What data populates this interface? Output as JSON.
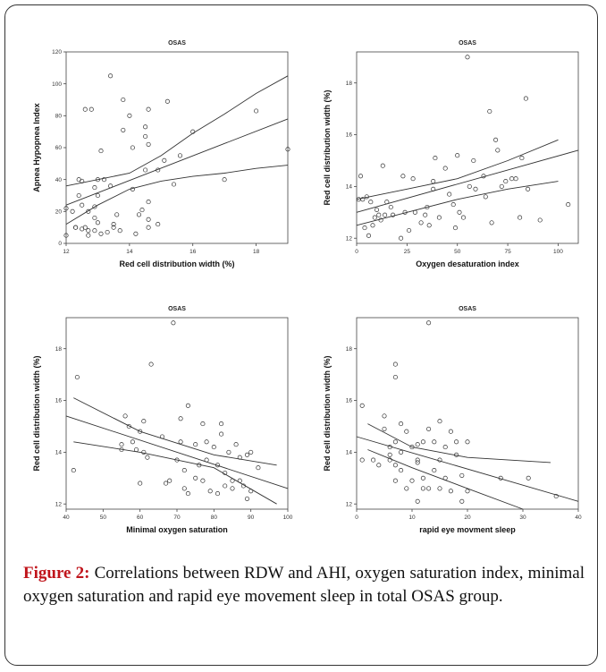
{
  "figure_label": "Figure 2:",
  "figure_caption": "Correlations between RDW and AHI, oxygen saturation index, minimal oxygen saturation and rapid eye movement sleep in total OSAS group.",
  "chart_data": [
    {
      "type": "scatter",
      "title": "OSAS",
      "xlabel": "Red cell distribution width (%)",
      "ylabel": "Apnea Hypopnea Index",
      "xlim": [
        12,
        19
      ],
      "ylim": [
        0,
        120
      ],
      "xticks": [
        12,
        14,
        16,
        18
      ],
      "yticks": [
        0,
        20,
        40,
        60,
        80,
        100,
        120
      ],
      "points": [
        [
          12.0,
          22
        ],
        [
          12.0,
          5
        ],
        [
          12.2,
          20
        ],
        [
          12.3,
          10
        ],
        [
          12.3,
          10
        ],
        [
          12.4,
          40
        ],
        [
          12.4,
          30
        ],
        [
          12.5,
          39
        ],
        [
          12.5,
          9
        ],
        [
          12.5,
          24
        ],
        [
          12.6,
          84
        ],
        [
          12.6,
          10
        ],
        [
          12.7,
          20
        ],
        [
          12.7,
          8
        ],
        [
          12.7,
          5
        ],
        [
          12.8,
          84
        ],
        [
          12.9,
          35
        ],
        [
          12.9,
          23
        ],
        [
          12.9,
          16
        ],
        [
          12.9,
          8
        ],
        [
          13.0,
          30
        ],
        [
          13.0,
          13
        ],
        [
          13.0,
          40
        ],
        [
          13.1,
          58
        ],
        [
          13.1,
          6
        ],
        [
          13.2,
          40
        ],
        [
          13.3,
          7
        ],
        [
          13.4,
          105
        ],
        [
          13.4,
          36
        ],
        [
          13.5,
          12
        ],
        [
          13.5,
          10
        ],
        [
          13.6,
          18
        ],
        [
          13.7,
          8
        ],
        [
          13.8,
          90
        ],
        [
          13.8,
          71
        ],
        [
          14.0,
          80
        ],
        [
          14.1,
          60
        ],
        [
          14.1,
          34
        ],
        [
          14.2,
          6
        ],
        [
          14.3,
          18
        ],
        [
          14.4,
          21
        ],
        [
          14.5,
          73
        ],
        [
          14.5,
          67
        ],
        [
          14.5,
          46
        ],
        [
          14.6,
          84
        ],
        [
          14.6,
          62
        ],
        [
          14.6,
          26
        ],
        [
          14.6,
          15
        ],
        [
          14.6,
          10
        ],
        [
          14.9,
          46
        ],
        [
          14.9,
          12
        ],
        [
          15.1,
          52
        ],
        [
          15.2,
          89
        ],
        [
          15.4,
          37
        ],
        [
          15.6,
          55
        ],
        [
          16.0,
          70
        ],
        [
          17.0,
          40
        ],
        [
          18.0,
          83
        ],
        [
          19.0,
          59
        ]
      ],
      "fit_line": [
        [
          12,
          24
        ],
        [
          19,
          78
        ]
      ],
      "ci_upper": [
        [
          12,
          36
        ],
        [
          13,
          40
        ],
        [
          14,
          44
        ],
        [
          15,
          55
        ],
        [
          16,
          69
        ],
        [
          17,
          81
        ],
        [
          18,
          94
        ],
        [
          19,
          105
        ]
      ],
      "ci_lower": [
        [
          12,
          12
        ],
        [
          13,
          24
        ],
        [
          14,
          34
        ],
        [
          15,
          39
        ],
        [
          16,
          42
        ],
        [
          17,
          44
        ],
        [
          18,
          47
        ],
        [
          19,
          49
        ]
      ]
    },
    {
      "type": "scatter",
      "title": "OSAS",
      "xlabel": "Oxygen desaturation index",
      "ylabel": "Red cell distribution width (%)",
      "xlim": [
        0,
        110
      ],
      "ylim": [
        11.8,
        19.2
      ],
      "xticks": [
        0,
        25,
        50,
        75,
        100
      ],
      "yticks": [
        12,
        14,
        16,
        18
      ],
      "points": [
        [
          1,
          13.5
        ],
        [
          2,
          14.4
        ],
        [
          3,
          13.5
        ],
        [
          4,
          12.4
        ],
        [
          5,
          13.6
        ],
        [
          6,
          12.1
        ],
        [
          7,
          13.4
        ],
        [
          8,
          12.5
        ],
        [
          9,
          12.8
        ],
        [
          10,
          13.1
        ],
        [
          11,
          12.9
        ],
        [
          12,
          12.7
        ],
        [
          13,
          14.8
        ],
        [
          14,
          12.9
        ],
        [
          15,
          13.4
        ],
        [
          17,
          13.2
        ],
        [
          18,
          12.9
        ],
        [
          22,
          12.0
        ],
        [
          23,
          14.4
        ],
        [
          24,
          13.0
        ],
        [
          26,
          12.3
        ],
        [
          28,
          14.3
        ],
        [
          29,
          13.0
        ],
        [
          32,
          12.6
        ],
        [
          34,
          12.9
        ],
        [
          35,
          13.2
        ],
        [
          36,
          12.5
        ],
        [
          38,
          14.2
        ],
        [
          38,
          13.9
        ],
        [
          39,
          15.1
        ],
        [
          41,
          12.8
        ],
        [
          44,
          14.7
        ],
        [
          46,
          13.7
        ],
        [
          48,
          13.3
        ],
        [
          49,
          12.4
        ],
        [
          50,
          15.2
        ],
        [
          51,
          13.0
        ],
        [
          53,
          12.8
        ],
        [
          55,
          19.0
        ],
        [
          56,
          14.0
        ],
        [
          58,
          15.0
        ],
        [
          59,
          13.9
        ],
        [
          63,
          14.4
        ],
        [
          64,
          13.6
        ],
        [
          66,
          16.9
        ],
        [
          67,
          12.6
        ],
        [
          69,
          15.8
        ],
        [
          70,
          15.4
        ],
        [
          72,
          14.0
        ],
        [
          74,
          14.2
        ],
        [
          77,
          14.3
        ],
        [
          79,
          14.3
        ],
        [
          81,
          12.8
        ],
        [
          82,
          15.1
        ],
        [
          84,
          17.4
        ],
        [
          85,
          13.9
        ],
        [
          91,
          12.7
        ],
        [
          105,
          13.3
        ]
      ],
      "fit_line": [
        [
          0,
          13.0
        ],
        [
          110,
          15.4
        ]
      ],
      "ci_upper": [
        [
          0,
          13.5
        ],
        [
          25,
          13.9
        ],
        [
          50,
          14.3
        ],
        [
          75,
          15.0
        ],
        [
          100,
          15.8
        ]
      ],
      "ci_lower": [
        [
          0,
          12.5
        ],
        [
          25,
          13.0
        ],
        [
          50,
          13.5
        ],
        [
          75,
          13.9
        ],
        [
          100,
          14.2
        ]
      ]
    },
    {
      "type": "scatter",
      "title": "OSAS",
      "xlabel": "Minimal oxygen saturation",
      "ylabel": "Red cell distribution width (%)",
      "xlim": [
        40,
        100
      ],
      "ylim": [
        11.8,
        19.2
      ],
      "xticks": [
        40,
        50,
        60,
        70,
        80,
        90,
        100
      ],
      "yticks": [
        12,
        14,
        16,
        18
      ],
      "points": [
        [
          42,
          13.3
        ],
        [
          43,
          16.9
        ],
        [
          55,
          14.3
        ],
        [
          55,
          14.1
        ],
        [
          56,
          15.4
        ],
        [
          57,
          15.0
        ],
        [
          58,
          14.4
        ],
        [
          59,
          14.1
        ],
        [
          60,
          12.8
        ],
        [
          60,
          14.8
        ],
        [
          61,
          14.0
        ],
        [
          61,
          15.2
        ],
        [
          62,
          13.8
        ],
        [
          63,
          17.4
        ],
        [
          66,
          14.6
        ],
        [
          67,
          12.8
        ],
        [
          68,
          12.9
        ],
        [
          69,
          19.0
        ],
        [
          70,
          13.7
        ],
        [
          71,
          14.4
        ],
        [
          71,
          15.3
        ],
        [
          72,
          12.6
        ],
        [
          72,
          13.3
        ],
        [
          73,
          15.8
        ],
        [
          73,
          12.4
        ],
        [
          75,
          14.3
        ],
        [
          75,
          13.0
        ],
        [
          76,
          13.5
        ],
        [
          77,
          15.1
        ],
        [
          77,
          12.9
        ],
        [
          78,
          14.4
        ],
        [
          78,
          13.7
        ],
        [
          79,
          12.5
        ],
        [
          80,
          14.2
        ],
        [
          81,
          12.4
        ],
        [
          81,
          13.5
        ],
        [
          82,
          15.1
        ],
        [
          82,
          14.7
        ],
        [
          83,
          13.2
        ],
        [
          83,
          12.7
        ],
        [
          84,
          14.0
        ],
        [
          85,
          12.9
        ],
        [
          85,
          12.6
        ],
        [
          86,
          14.3
        ],
        [
          87,
          12.9
        ],
        [
          87,
          13.8
        ],
        [
          88,
          12.7
        ],
        [
          89,
          13.9
        ],
        [
          89,
          12.2
        ],
        [
          90,
          14.0
        ],
        [
          90,
          12.5
        ],
        [
          92,
          13.4
        ]
      ],
      "fit_line": [
        [
          40,
          15.4
        ],
        [
          100,
          12.6
        ]
      ],
      "ci_upper": [
        [
          42,
          16.1
        ],
        [
          60,
          14.8
        ],
        [
          80,
          13.9
        ],
        [
          97,
          13.5
        ]
      ],
      "ci_lower": [
        [
          42,
          14.4
        ],
        [
          60,
          14.0
        ],
        [
          80,
          13.4
        ],
        [
          97,
          12.0
        ]
      ]
    },
    {
      "type": "scatter",
      "title": "OSAS",
      "xlabel": "rapid eye movment sleep",
      "ylabel": "Red cell distribution width (%)",
      "xlim": [
        0,
        40
      ],
      "ylim": [
        11.8,
        19.2
      ],
      "xticks": [
        0,
        10,
        20,
        30,
        40
      ],
      "yticks": [
        12,
        14,
        16,
        18
      ],
      "points": [
        [
          1,
          13.7
        ],
        [
          1,
          15.8
        ],
        [
          3,
          13.7
        ],
        [
          4,
          13.5
        ],
        [
          5,
          15.4
        ],
        [
          5,
          14.9
        ],
        [
          6,
          13.9
        ],
        [
          6,
          14.2
        ],
        [
          6,
          13.7
        ],
        [
          7,
          14.4
        ],
        [
          7,
          17.4
        ],
        [
          7,
          16.9
        ],
        [
          7,
          13.5
        ],
        [
          7,
          12.9
        ],
        [
          8,
          15.1
        ],
        [
          8,
          14.0
        ],
        [
          8,
          13.3
        ],
        [
          9,
          12.6
        ],
        [
          9,
          14.8
        ],
        [
          10,
          14.2
        ],
        [
          10,
          12.9
        ],
        [
          11,
          13.7
        ],
        [
          11,
          14.3
        ],
        [
          11,
          12.1
        ],
        [
          11,
          13.6
        ],
        [
          12,
          14.4
        ],
        [
          12,
          12.6
        ],
        [
          12,
          13.0
        ],
        [
          13,
          19.0
        ],
        [
          13,
          14.9
        ],
        [
          13,
          12.6
        ],
        [
          14,
          13.3
        ],
        [
          14,
          14.4
        ],
        [
          15,
          15.2
        ],
        [
          15,
          13.7
        ],
        [
          15,
          12.6
        ],
        [
          16,
          14.2
        ],
        [
          16,
          13.0
        ],
        [
          17,
          14.8
        ],
        [
          17,
          12.5
        ],
        [
          18,
          14.4
        ],
        [
          18,
          13.9
        ],
        [
          19,
          12.1
        ],
        [
          19,
          13.1
        ],
        [
          20,
          14.4
        ],
        [
          20,
          12.5
        ],
        [
          26,
          13.0
        ],
        [
          31,
          13.0
        ],
        [
          36,
          12.3
        ]
      ],
      "fit_line": [
        [
          0,
          14.6
        ],
        [
          40,
          12.1
        ]
      ],
      "ci_upper": [
        [
          2,
          15.1
        ],
        [
          10,
          14.2
        ],
        [
          20,
          13.8
        ],
        [
          35,
          13.6
        ]
      ],
      "ci_lower": [
        [
          2,
          14.1
        ],
        [
          10,
          13.4
        ],
        [
          20,
          12.6
        ],
        [
          30,
          11.8
        ]
      ]
    }
  ]
}
